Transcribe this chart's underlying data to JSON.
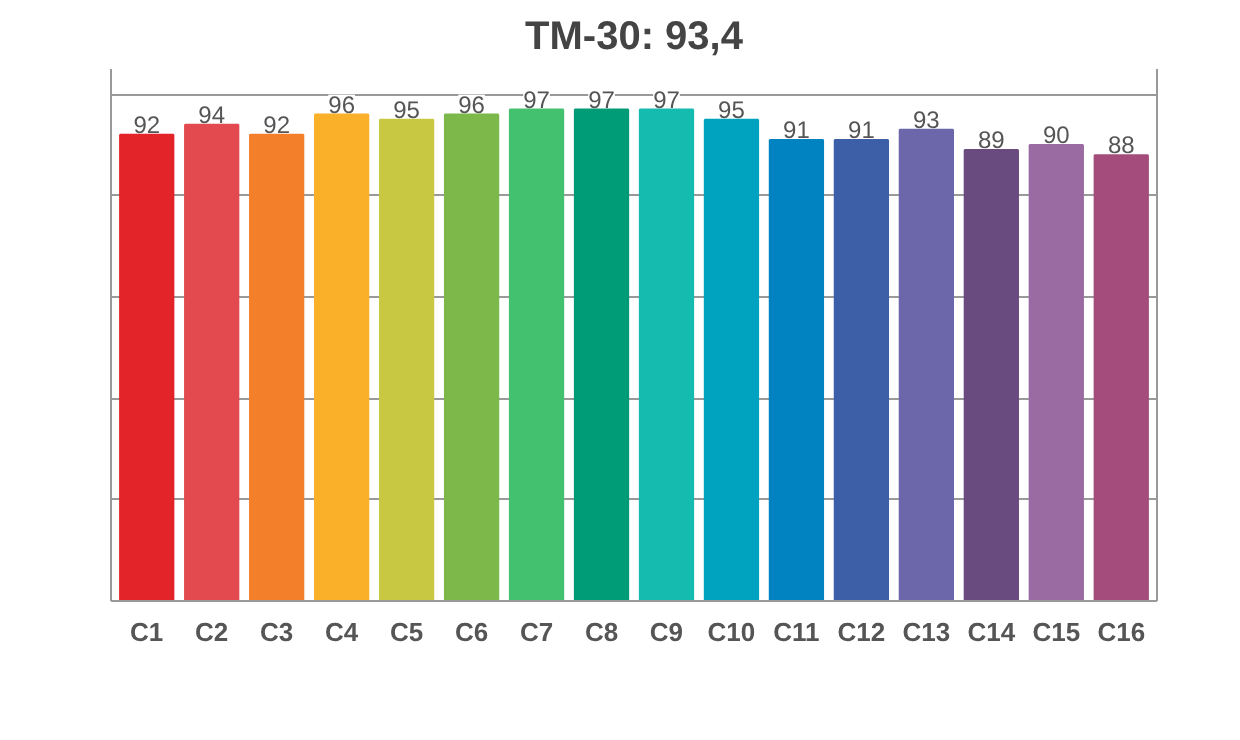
{
  "chart_data": {
    "type": "bar",
    "title": "TM-30: 93,4",
    "categories": [
      "C1",
      "C2",
      "C3",
      "C4",
      "C5",
      "C6",
      "C7",
      "C8",
      "C9",
      "C10",
      "C11",
      "C12",
      "C13",
      "C14",
      "C15",
      "C16"
    ],
    "values": [
      92,
      94,
      92,
      96,
      95,
      96,
      97,
      97,
      97,
      95,
      91,
      91,
      93,
      89,
      90,
      88
    ],
    "colors": [
      "#e32428",
      "#e34a4f",
      "#f47f2a",
      "#fbb02a",
      "#c9c843",
      "#7db84a",
      "#44c16e",
      "#009b77",
      "#15bbaf",
      "#00a3bf",
      "#0083c0",
      "#3d5fa8",
      "#6c67ab",
      "#6a4b80",
      "#9a6aa3",
      "#a44d7c"
    ],
    "ylim": [
      0,
      105
    ],
    "yticks": [
      {
        "value": 0,
        "label": null
      },
      {
        "value": 20,
        "label": null
      },
      {
        "value": 40,
        "label": null
      },
      {
        "value": 60,
        "label": null
      },
      {
        "value": 80,
        "label": null
      },
      {
        "value": 100,
        "label": null
      }
    ],
    "tick_labels": "x",
    "grid": "y",
    "data_labels": true
  }
}
